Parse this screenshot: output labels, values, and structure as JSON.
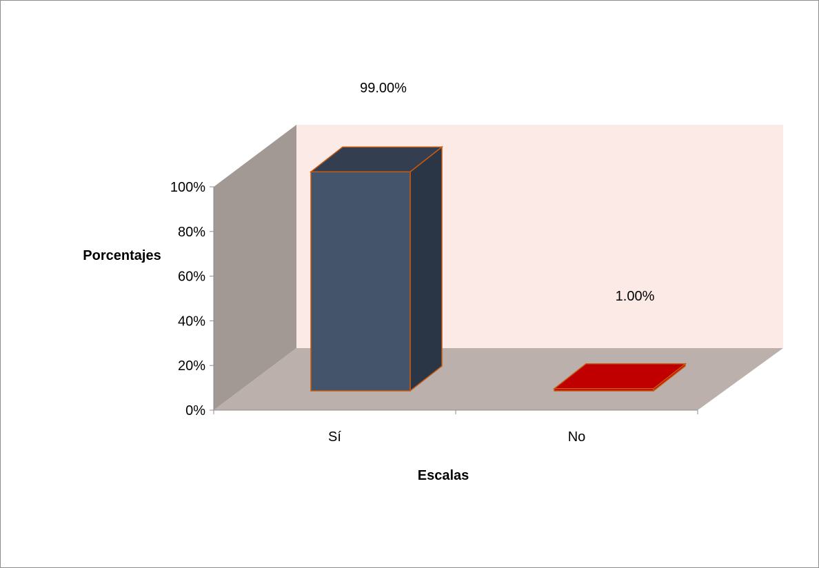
{
  "chart_data": {
    "type": "bar",
    "style": "3d-column",
    "categories": [
      "Sí",
      "No"
    ],
    "values": [
      99.0,
      1.0
    ],
    "value_labels": [
      "99.00%",
      "1.00%"
    ],
    "xlabel": "Escalas",
    "ylabel": "Porcentajes",
    "ylim": [
      0,
      100
    ],
    "y_ticks": [
      "0%",
      "20%",
      "40%",
      "60%",
      "80%",
      "100%"
    ],
    "grid": false,
    "legend": "none",
    "colors": {
      "bar_si_front": "#44546A",
      "bar_si_side": "#2A3546",
      "bar_si_top": "#333F50",
      "bar_no": "#C00000",
      "bar_outline": "#C55A11",
      "back_wall": "#FBEAE6",
      "side_wall": "#A29994",
      "floor": "#BCB0AD"
    }
  }
}
